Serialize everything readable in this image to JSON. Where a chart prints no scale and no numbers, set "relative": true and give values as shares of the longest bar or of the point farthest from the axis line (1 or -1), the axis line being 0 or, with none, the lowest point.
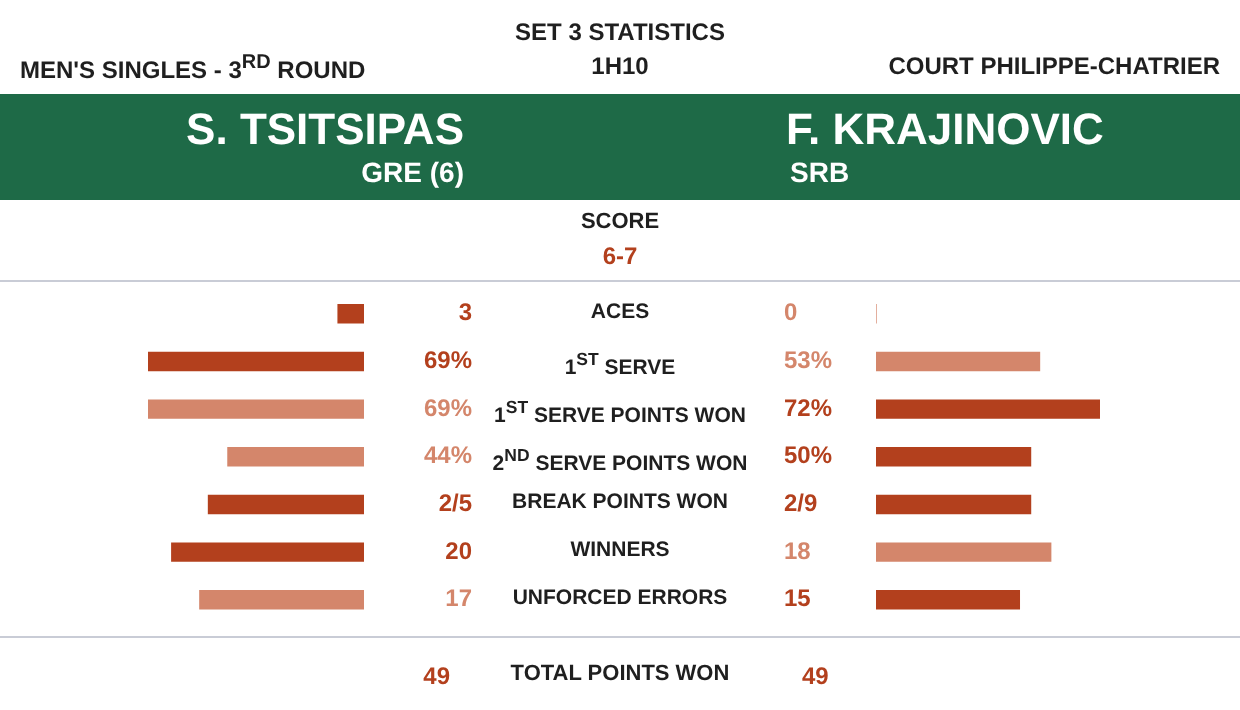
{
  "chart_data": [
    {
      "type": "bar",
      "orientation": "horizontal",
      "relative": true,
      "legend": false,
      "title": "SET 3 STATISTICS",
      "subtitle": "1H10",
      "categories": [
        "ACES",
        "1$^{ST}$ SERVE",
        "1$^{ST}$ SERVE POINTS WON",
        "2$^{ND}$ SERVE POINTS WON",
        "BREAK POINTS WON",
        "WINNERS",
        "UNFORCED ERRORS"
      ],
      "annotations": [
        "MEN'S SINGLES - 3$^{RD}$ ROUND",
        "COURT PHILIPPE-CHATRIER",
        "GRE (6)",
        "SRB",
        "SCORE",
        "6-7",
        "49",
        "TOTAL POINTS WON",
        "49",
        "3",
        "69%",
        "69%",
        "44%",
        "2/5",
        "20",
        "17"
      ],
      "series": [
        {
          "name": "S. TSITSIPAS",
          "colors": [
            "#b3401d",
            "#b3401d",
            "#d4866b",
            "#d4866b",
            "#b3401d",
            "#b3401d",
            "#d4866b"
          ],
          "values": [
            -0.12,
            -1,
            -1,
            -0.63,
            -0.72,
            -0.89,
            -0.76
          ]
        }
      ]
    },
    {
      "type": "bar",
      "orientation": "horizontal",
      "relative": true,
      "legend": false,
      "categories": [
        null,
        null,
        null,
        null,
        null,
        null,
        null
      ],
      "annotations": [
        "0",
        "53%",
        "72%",
        "50%",
        "2/9",
        "18",
        "15"
      ],
      "series": [
        {
          "name": "F. KRAJINOVIC",
          "colors": [
            "#d4866b",
            "#d4866b",
            "#b3401d",
            "#b3401d",
            "#b3401d",
            "#d4866b",
            "#b3401d"
          ],
          "values": [
            0,
            0.73,
            1,
            0.69,
            0.69,
            0.78,
            0.64
          ]
        }
      ]
    }
  ]
}
